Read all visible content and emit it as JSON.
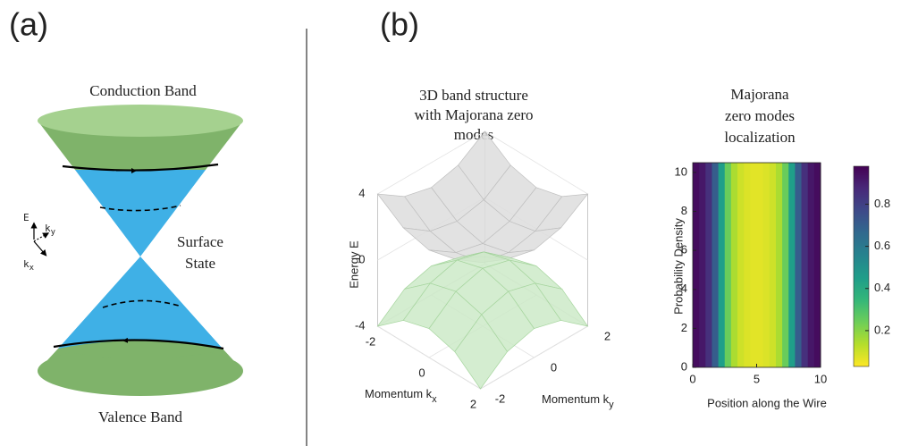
{
  "panel_a": {
    "label": "(a)",
    "top_label": "Conduction Band",
    "surface_label": [
      "Surface",
      "State"
    ],
    "bottom_label": "Valence Band",
    "axes": {
      "e": "E",
      "ky": "k",
      "ky_sub": "y",
      "kx": "k",
      "kx_sub": "x"
    }
  },
  "panel_b_label": "(b)",
  "chart_data": [
    {
      "type": "surface",
      "title": [
        "3D band structure",
        "with Majorana zero",
        "modes"
      ],
      "xlabel": "Momentum k",
      "xlabel_sub": "x",
      "ylabel": "Momentum k",
      "ylabel_sub": "y",
      "zlabel": "Energy E",
      "x": [
        -2,
        -1,
        0,
        1,
        2
      ],
      "y": [
        -2,
        -1,
        0,
        1,
        2
      ],
      "xlim": [
        -2,
        2
      ],
      "ylim": [
        -2,
        2
      ],
      "zlim": [
        -4,
        4
      ],
      "xticks": [
        -2,
        0,
        2
      ],
      "yticks": [
        -2,
        0,
        2
      ],
      "zticks": [
        -4,
        0,
        4
      ],
      "grid": true,
      "series": [
        {
          "color": "#dedede",
          "values": [
            [
              4,
              2.9,
              2.5,
              2.9,
              4
            ],
            [
              2.9,
              1.75,
              1.4,
              1.75,
              2.9
            ],
            [
              2.5,
              1.4,
              1,
              1.4,
              2.5
            ],
            [
              2.9,
              1.75,
              1.4,
              1.75,
              2.9
            ],
            [
              4,
              2.9,
              2.5,
              2.9,
              4
            ]
          ]
        },
        {
          "color": "#cdeac8",
          "values": [
            [
              -4,
              -2.7,
              -2.25,
              -2.7,
              -4
            ],
            [
              -2.7,
              -1.4,
              -0.95,
              -1.4,
              -2.7
            ],
            [
              -2.25,
              -0.95,
              -0.5,
              -0.95,
              -2.25
            ],
            [
              -2.7,
              -1.4,
              -0.95,
              -1.4,
              -2.7
            ],
            [
              -4,
              -2.7,
              -2.25,
              -2.7,
              -4
            ]
          ]
        }
      ]
    },
    {
      "type": "heatmap",
      "title": [
        "Majorana",
        "zero modes",
        "localization"
      ],
      "xlabel": "Position along the Wire",
      "ylabel": "Probability Density",
      "x": [
        0.25,
        0.75,
        1.25,
        1.75,
        2.25,
        2.75,
        3.25,
        3.75,
        4.25,
        4.75,
        5.25,
        5.75,
        6.25,
        6.75,
        7.25,
        7.75,
        8.25,
        8.75,
        9.25,
        9.75
      ],
      "values": [
        0.95,
        0.92,
        0.85,
        0.7,
        0.45,
        0.25,
        0.15,
        0.1,
        0.08,
        0.07,
        0.07,
        0.08,
        0.1,
        0.15,
        0.25,
        0.45,
        0.7,
        0.85,
        0.92,
        0.95
      ],
      "xlim": [
        0,
        10
      ],
      "ylim": [
        0,
        10.5
      ],
      "xticks": [
        0,
        5,
        10
      ],
      "yticks": [
        0,
        2,
        4,
        6,
        8,
        10
      ],
      "colormap": "viridis_r",
      "clim": [
        0.03,
        0.98
      ],
      "cticks": [
        0.2,
        0.4,
        0.6,
        0.8
      ]
    }
  ]
}
